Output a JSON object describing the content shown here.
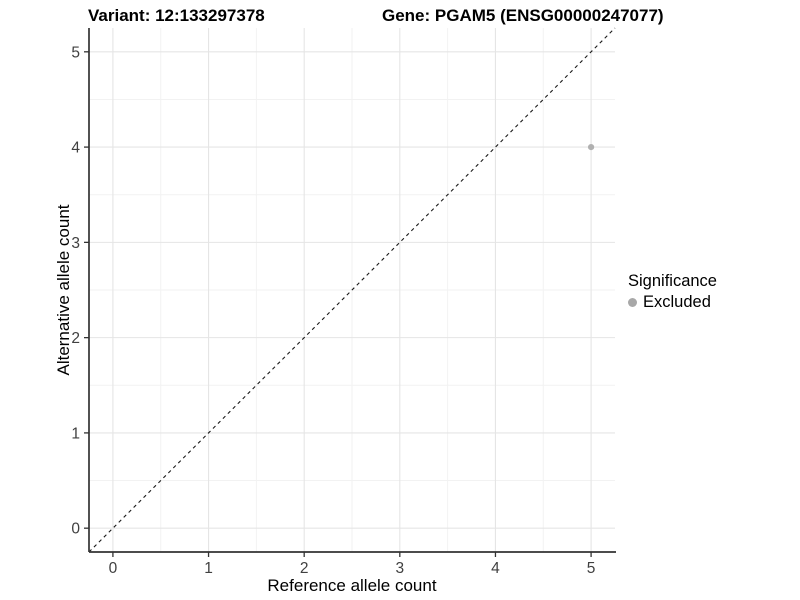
{
  "chart_data": {
    "type": "scatter",
    "title_left": "Variant: 12:133297378",
    "title_right": "Gene: PGAM5 (ENSG00000247077)",
    "xlabel": "Reference allele count",
    "ylabel": "Alternative allele count",
    "xlim": [
      -0.25,
      5.25
    ],
    "ylim": [
      -0.25,
      5.25
    ],
    "xticks": [
      0,
      1,
      2,
      3,
      4,
      5
    ],
    "yticks": [
      0,
      1,
      2,
      3,
      4,
      5
    ],
    "minor_xticks": [
      0.5,
      1.5,
      2.5,
      3.5,
      4.5
    ],
    "minor_yticks": [
      0.5,
      1.5,
      2.5,
      3.5,
      4.5
    ],
    "grid": "major+minor",
    "series": [
      {
        "name": "Excluded",
        "points": [
          [
            5,
            4
          ]
        ],
        "color": "#b0b0b0"
      }
    ],
    "reference_line": {
      "type": "diagonal",
      "equation": "y = x",
      "style": "dashed",
      "color": "#1a1a1a"
    },
    "legend": {
      "title": "Significance",
      "position": "right",
      "items": [
        {
          "label": "Excluded",
          "marker": "circle",
          "color": "#a8a8a8"
        }
      ]
    },
    "colors": {
      "panel_background": "#ffffff",
      "grid_major": "#e5e5e5",
      "grid_minor": "#f2f2f2",
      "axis_line": "#333333",
      "tick_label": "#404040",
      "point": "#b0b0b0"
    }
  }
}
